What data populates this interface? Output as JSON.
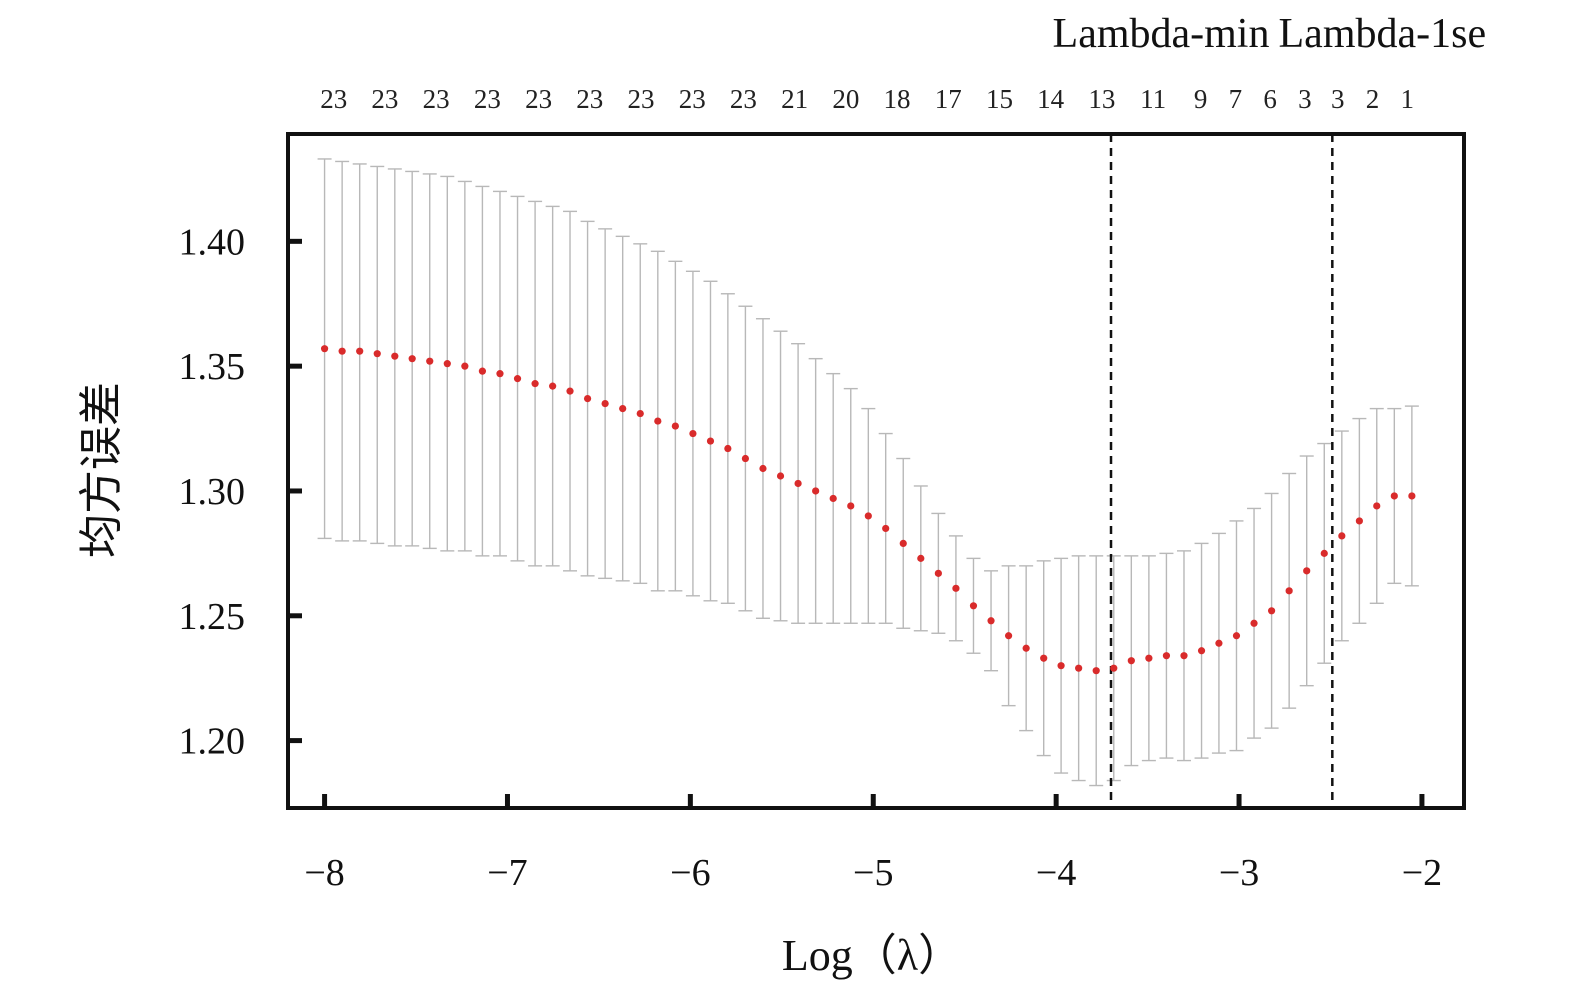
{
  "chart_data": {
    "type": "scatter",
    "xlabel": "Log（λ）",
    "ylabel": "均方误差",
    "xlim": [
      -8.2,
      -1.77
    ],
    "ylim": [
      1.173,
      1.443
    ],
    "x_ticks": [
      "−8",
      "−7",
      "−6",
      "−5",
      "−4",
      "−3",
      "−2"
    ],
    "x_tick_values": [
      -8,
      -7,
      -6,
      -5,
      -4,
      -3,
      -2
    ],
    "y_ticks": [
      "1.20",
      "1.25",
      "1.30",
      "1.35",
      "1.40"
    ],
    "y_tick_values": [
      1.2,
      1.25,
      1.3,
      1.35,
      1.4
    ],
    "colors": {
      "point": "#d92b2b",
      "errorbar": "#b8b8b8",
      "axis": "#111111",
      "vline": "#111111"
    },
    "top_axis": {
      "labels": [
        "23",
        "23",
        "23",
        "23",
        "23",
        "23",
        "23",
        "23",
        "23",
        "21",
        "20",
        "18",
        "17",
        "15",
        "14",
        "13",
        "11",
        "9",
        "7",
        "6",
        "3",
        "3",
        "2",
        "1"
      ],
      "x": [
        -7.95,
        -7.67,
        -7.39,
        -7.11,
        -6.83,
        -6.55,
        -6.27,
        -5.99,
        -5.71,
        -5.43,
        -5.15,
        -4.87,
        -4.59,
        -4.31,
        -4.03,
        -3.75,
        -3.47,
        -3.21,
        -3.02,
        -2.83,
        -2.64,
        -2.46,
        -2.27,
        -2.08
      ]
    },
    "vlines": [
      {
        "x": -3.7,
        "label": "Lambda-min"
      },
      {
        "x": -2.49,
        "label": "Lambda-1se"
      }
    ],
    "points": {
      "x": [
        -8.0,
        -7.904,
        -7.808,
        -7.712,
        -7.616,
        -7.521,
        -7.425,
        -7.329,
        -7.233,
        -7.137,
        -7.041,
        -6.945,
        -6.849,
        -6.753,
        -6.658,
        -6.562,
        -6.466,
        -6.37,
        -6.274,
        -6.178,
        -6.082,
        -5.986,
        -5.89,
        -5.795,
        -5.699,
        -5.603,
        -5.507,
        -5.411,
        -5.315,
        -5.219,
        -5.123,
        -5.027,
        -4.932,
        -4.836,
        -4.74,
        -4.644,
        -4.548,
        -4.452,
        -4.356,
        -4.26,
        -4.164,
        -4.068,
        -3.973,
        -3.877,
        -3.781,
        -3.685,
        -3.589,
        -3.493,
        -3.397,
        -3.301,
        -3.205,
        -3.11,
        -3.014,
        -2.918,
        -2.822,
        -2.726,
        -2.63,
        -2.534,
        -2.438,
        -2.342,
        -2.247,
        -2.151,
        -2.055
      ],
      "y": [
        1.357,
        1.356,
        1.356,
        1.355,
        1.354,
        1.353,
        1.352,
        1.351,
        1.35,
        1.348,
        1.347,
        1.345,
        1.343,
        1.342,
        1.34,
        1.337,
        1.335,
        1.333,
        1.331,
        1.328,
        1.326,
        1.323,
        1.32,
        1.317,
        1.313,
        1.309,
        1.306,
        1.303,
        1.3,
        1.297,
        1.294,
        1.29,
        1.285,
        1.279,
        1.273,
        1.267,
        1.261,
        1.254,
        1.248,
        1.242,
        1.237,
        1.233,
        1.23,
        1.229,
        1.228,
        1.229,
        1.232,
        1.233,
        1.234,
        1.234,
        1.236,
        1.239,
        1.242,
        1.247,
        1.252,
        1.26,
        1.268,
        1.275,
        1.282,
        1.288,
        1.294,
        1.298,
        1.298
      ],
      "upper": [
        1.433,
        1.432,
        1.431,
        1.43,
        1.429,
        1.428,
        1.427,
        1.426,
        1.424,
        1.422,
        1.42,
        1.418,
        1.416,
        1.414,
        1.412,
        1.408,
        1.405,
        1.402,
        1.399,
        1.396,
        1.392,
        1.388,
        1.384,
        1.379,
        1.374,
        1.369,
        1.364,
        1.359,
        1.353,
        1.347,
        1.341,
        1.333,
        1.323,
        1.313,
        1.302,
        1.291,
        1.282,
        1.273,
        1.268,
        1.27,
        1.27,
        1.272,
        1.273,
        1.274,
        1.274,
        1.274,
        1.274,
        1.274,
        1.275,
        1.276,
        1.279,
        1.283,
        1.288,
        1.293,
        1.299,
        1.307,
        1.314,
        1.319,
        1.324,
        1.329,
        1.333,
        1.333,
        1.334
      ],
      "lower": [
        1.281,
        1.28,
        1.28,
        1.279,
        1.278,
        1.278,
        1.277,
        1.276,
        1.276,
        1.274,
        1.274,
        1.272,
        1.27,
        1.27,
        1.268,
        1.266,
        1.265,
        1.264,
        1.263,
        1.26,
        1.26,
        1.258,
        1.256,
        1.255,
        1.252,
        1.249,
        1.248,
        1.247,
        1.247,
        1.247,
        1.247,
        1.247,
        1.247,
        1.245,
        1.244,
        1.243,
        1.24,
        1.235,
        1.228,
        1.214,
        1.204,
        1.194,
        1.187,
        1.184,
        1.182,
        1.184,
        1.19,
        1.192,
        1.193,
        1.192,
        1.193,
        1.195,
        1.196,
        1.201,
        1.205,
        1.213,
        1.222,
        1.231,
        1.24,
        1.247,
        1.255,
        1.263,
        1.262
      ]
    }
  }
}
